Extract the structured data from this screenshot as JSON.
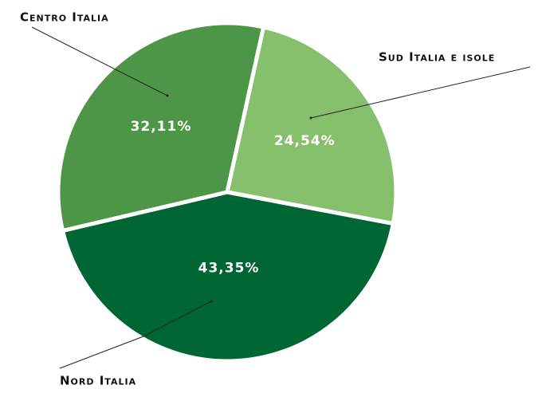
{
  "chart_data": {
    "type": "pie",
    "categories": [
      "Sud Italia e isole",
      "Nord Italia",
      "Centro Italia"
    ],
    "values": [
      24.54,
      43.35,
      32.11
    ],
    "value_labels": [
      "24,54%",
      "43,35%",
      "32,11%"
    ],
    "colors": [
      "#86c06c",
      "#006633",
      "#4e9647"
    ]
  }
}
